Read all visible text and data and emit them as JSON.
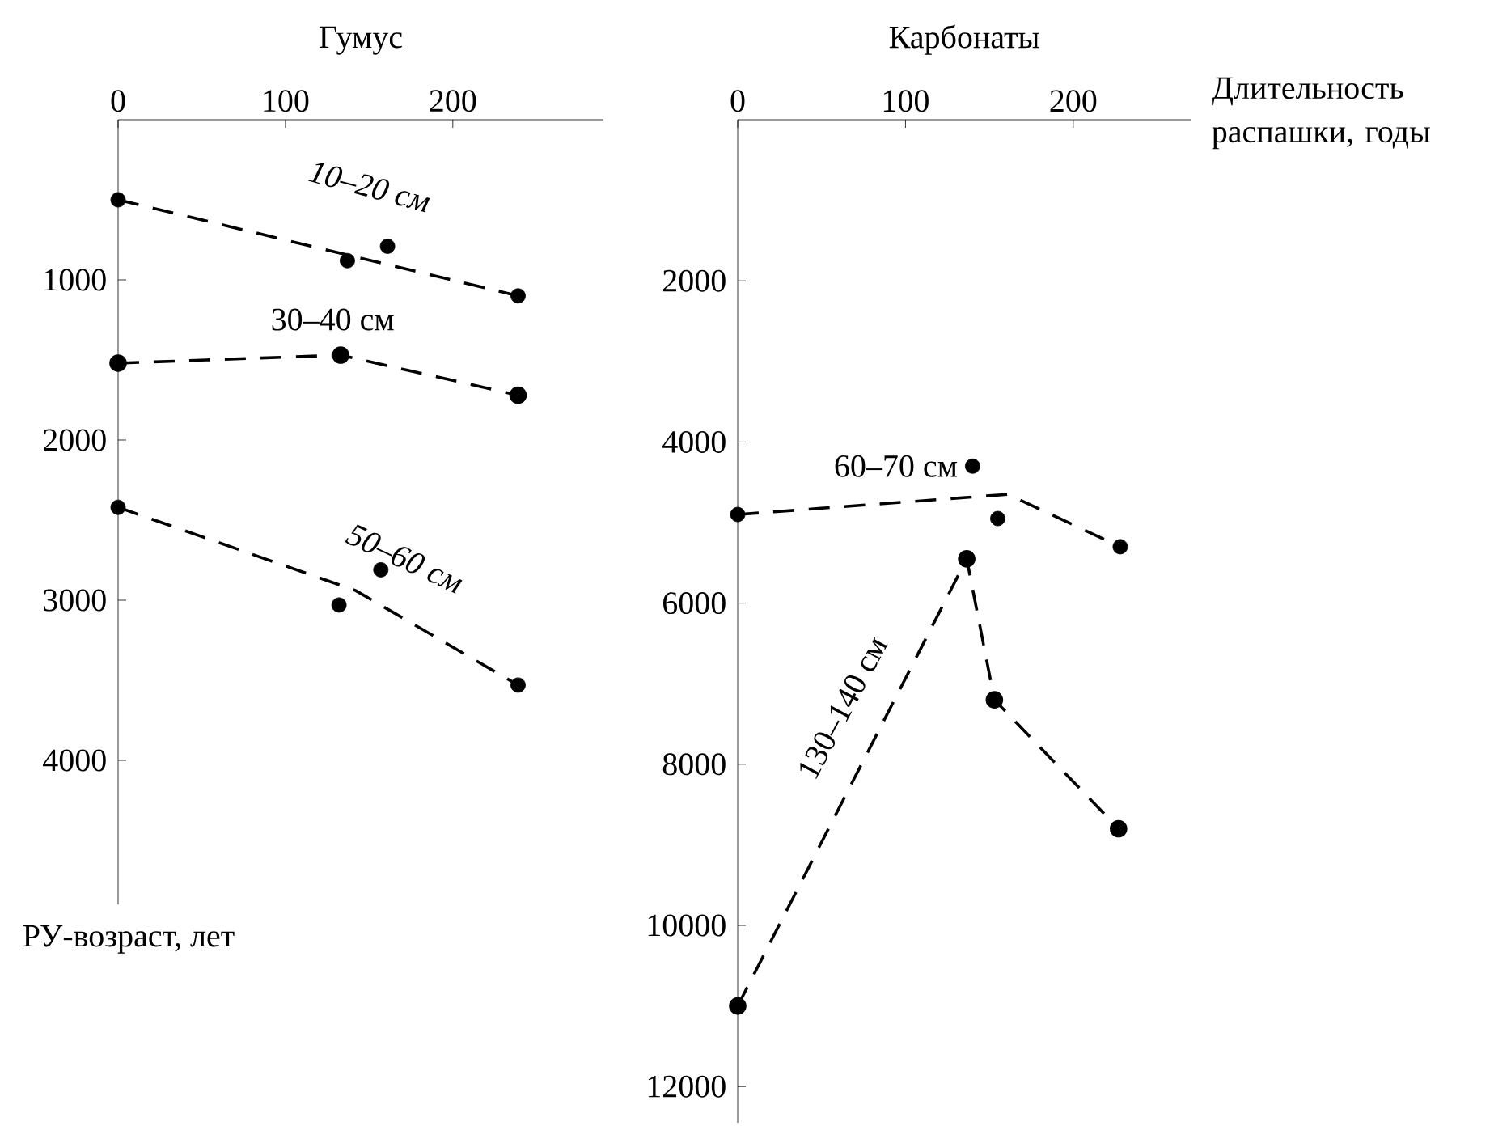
{
  "chart_data": [
    {
      "type": "line",
      "title": "Гумус",
      "ylabel": "РУ-возраст, лет",
      "xlim": [
        0,
        290
      ],
      "ylim": [
        4900,
        0
      ],
      "xticks": [
        0,
        100,
        200
      ],
      "yticks": [
        1000,
        2000,
        3000,
        4000
      ],
      "series": [
        {
          "type": "scatter",
          "name": "10–20 см",
          "color": "#000000",
          "marker": "circle",
          "x": [
            0,
            137,
            161,
            239
          ],
          "values": [
            500,
            880,
            790,
            1100
          ]
        },
        {
          "type": "line",
          "color": "#000000",
          "marker": "none",
          "line_style": "dashed",
          "x": [
            0,
            239
          ],
          "values": [
            500,
            1100
          ]
        },
        {
          "type": "line",
          "name": "30–40 см",
          "color": "#000000",
          "marker": "circle",
          "line_style": "dashed",
          "x": [
            0,
            133,
            239
          ],
          "values": [
            1520,
            1470,
            1720
          ]
        },
        {
          "type": "scatter",
          "name": "50–60 см",
          "color": "#000000",
          "marker": "circle",
          "x": [
            0,
            132,
            157,
            239
          ],
          "values": [
            2420,
            3030,
            2810,
            3530
          ]
        },
        {
          "type": "line",
          "color": "#000000",
          "marker": "none",
          "line_style": "dashed",
          "x": [
            0,
            142,
            239
          ],
          "values": [
            2420,
            2940,
            3530
          ]
        }
      ]
    },
    {
      "type": "line",
      "title": "Карбонаты",
      "xlabel": "Длительность распашки, годы",
      "xlim": [
        0,
        270
      ],
      "ylim": [
        12450,
        0
      ],
      "xticks": [
        0,
        100,
        200
      ],
      "yticks": [
        2000,
        4000,
        6000,
        8000,
        10000,
        12000
      ],
      "series": [
        {
          "type": "scatter",
          "name": "60–70 см",
          "color": "#000000",
          "marker": "circle",
          "x": [
            0,
            140,
            155,
            228
          ],
          "values": [
            4900,
            4300,
            4950,
            5300
          ]
        },
        {
          "type": "line",
          "color": "#000000",
          "marker": "none",
          "line_style": "dashed",
          "x": [
            0,
            161,
            228
          ],
          "values": [
            4900,
            4650,
            5300
          ]
        },
        {
          "type": "line",
          "name": "130–140 см",
          "color": "#000000",
          "marker": "circle",
          "line_style": "dashed",
          "x": [
            0,
            136.5,
            153,
            227
          ],
          "values": [
            11000,
            5450,
            7200,
            8800
          ]
        }
      ]
    }
  ]
}
